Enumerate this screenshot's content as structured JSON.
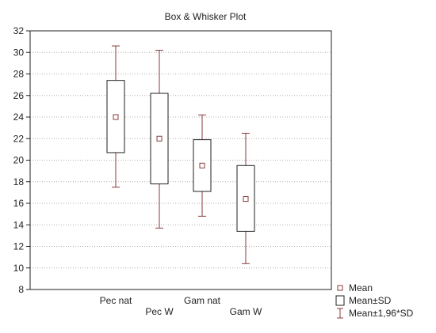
{
  "chart_data": {
    "type": "box",
    "title": "Box & Whisker Plot",
    "xlabel": "",
    "ylabel": "",
    "ylim": [
      8,
      32
    ],
    "yticks": [
      8,
      10,
      12,
      14,
      16,
      18,
      20,
      22,
      24,
      26,
      28,
      30,
      32
    ],
    "ytick_labels": [
      "8",
      "10",
      "12",
      "14",
      "16",
      "18",
      "20",
      "22",
      "24",
      "26",
      "28",
      "30",
      "32"
    ],
    "grid": "dotted",
    "categories": [
      "Pec nat",
      "Pec W",
      "Gam nat",
      "Gam W"
    ],
    "boxes": [
      {
        "category": "Pec nat",
        "mean": 24.0,
        "sd_low": 20.7,
        "sd_high": 27.4,
        "whisker_low": 17.5,
        "whisker_high": 30.6
      },
      {
        "category": "Pec W",
        "mean": 22.0,
        "sd_low": 17.8,
        "sd_high": 26.2,
        "whisker_low": 13.7,
        "whisker_high": 30.2
      },
      {
        "category": "Gam nat",
        "mean": 19.5,
        "sd_low": 17.1,
        "sd_high": 21.9,
        "whisker_low": 14.8,
        "whisker_high": 24.2
      },
      {
        "category": "Gam W",
        "mean": 16.4,
        "sd_low": 13.4,
        "sd_high": 19.5,
        "whisker_low": 10.4,
        "whisker_high": 22.5
      }
    ],
    "legend": {
      "placement": "bottom-right",
      "items": [
        {
          "symbol": "mean-marker",
          "label": "Mean"
        },
        {
          "symbol": "box",
          "label": "Mean±SD"
        },
        {
          "symbol": "whisker",
          "label": "Mean±1,96*SD"
        }
      ]
    },
    "colors": {
      "whisker": "#8b3a3a",
      "box": "#222222",
      "mean_marker": "#8b3a3a",
      "grid": "#b0b0b0",
      "axis": "#222222"
    }
  }
}
